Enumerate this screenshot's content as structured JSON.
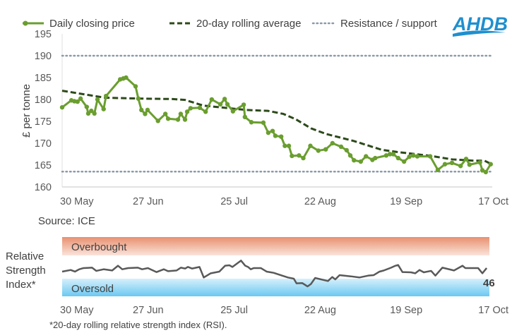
{
  "logo_text": "AHDB",
  "source": "Source: ICE",
  "footnote": "*20-day rolling relative strength index (RSI).",
  "colors": {
    "price": "#6a9e2f",
    "avg": "#2d4a1a",
    "level": "#8a9aa8",
    "rsi": "#595959",
    "logo": "#1f8fcf"
  },
  "chart_data": [
    {
      "type": "line",
      "ylabel": "£ per tonne",
      "xlabel": "",
      "x_unit": "days since 30 May",
      "xlim": [
        0,
        140
      ],
      "ylim": [
        160,
        195
      ],
      "yticks": [
        160,
        165,
        170,
        175,
        180,
        185,
        190,
        195
      ],
      "xticks": [
        {
          "day": 0,
          "label": "30 May"
        },
        {
          "day": 28,
          "label": "27 Jun"
        },
        {
          "day": 56,
          "label": "25 Jul"
        },
        {
          "day": 84,
          "label": "22 Aug"
        },
        {
          "day": 112,
          "label": "19 Sep"
        },
        {
          "day": 140,
          "label": "17 Oct"
        }
      ],
      "legend": [
        "Daily closing price",
        "20-day rolling average",
        "Resistance / support"
      ],
      "legend_position": "top",
      "resistance_support": [
        190,
        163.5
      ],
      "series": [
        {
          "name": "Daily closing price",
          "points": [
            [
              0,
              178.2
            ],
            [
              3,
              179.8
            ],
            [
              4,
              179.6
            ],
            [
              5,
              179.5
            ],
            [
              6,
              180.2
            ],
            [
              8,
              178.3
            ],
            [
              8.5,
              176.8
            ],
            [
              9.5,
              177.4
            ],
            [
              10.5,
              176.8
            ],
            [
              11.5,
              180
            ],
            [
              13.5,
              177.8
            ],
            [
              14.3,
              180.8
            ],
            [
              18.9,
              184.6
            ],
            [
              19.9,
              184.8
            ],
            [
              20.8,
              185
            ],
            [
              23.9,
              183
            ],
            [
              24.8,
              180.2
            ],
            [
              25.8,
              177.6
            ],
            [
              27,
              176.7
            ],
            [
              27.8,
              177.6
            ],
            [
              31.2,
              175.1
            ],
            [
              33.6,
              176.7
            ],
            [
              34.5,
              175.6
            ],
            [
              37.7,
              175.4
            ],
            [
              38.6,
              176.7
            ],
            [
              40,
              175.4
            ],
            [
              40.7,
              177.2
            ],
            [
              41.8,
              178
            ],
            [
              44.8,
              178.1
            ],
            [
              46.7,
              177.2
            ],
            [
              48.7,
              180
            ],
            [
              51.5,
              178.9
            ],
            [
              52.9,
              180.1
            ],
            [
              53.8,
              178.9
            ],
            [
              55.6,
              177.3
            ],
            [
              59.1,
              178.8
            ],
            [
              59.5,
              176
            ],
            [
              61.6,
              174.8
            ],
            [
              65.5,
              174.7
            ],
            [
              67.1,
              172.4
            ],
            [
              68.5,
              172.8
            ],
            [
              69.4,
              171.7
            ],
            [
              71.3,
              171.5
            ],
            [
              72.5,
              169.4
            ],
            [
              73.8,
              169.4
            ],
            [
              74.8,
              167.1
            ],
            [
              77.1,
              167.2
            ],
            [
              78.5,
              166.6
            ],
            [
              80.8,
              169.4
            ],
            [
              83.4,
              168.3
            ],
            [
              85.8,
              168.6
            ],
            [
              88,
              170
            ],
            [
              90.8,
              169.2
            ],
            [
              92.6,
              168.4
            ],
            [
              93.8,
              167.2
            ],
            [
              95,
              166.1
            ],
            [
              97.2,
              165.8
            ],
            [
              98.9,
              167
            ],
            [
              101,
              166.2
            ],
            [
              101.9,
              166.6
            ],
            [
              105.5,
              167.2
            ],
            [
              106.7,
              167.5
            ],
            [
              107.8,
              167.5
            ],
            [
              109.4,
              166.6
            ],
            [
              111.3,
              165.8
            ],
            [
              113,
              166.9
            ],
            [
              114.3,
              167.2
            ],
            [
              115.6,
              167
            ],
            [
              119.8,
              167
            ],
            [
              122.3,
              163.9
            ],
            [
              124.6,
              165.2
            ],
            [
              126.9,
              165.5
            ],
            [
              129.7,
              164.8
            ],
            [
              131.5,
              166.4
            ],
            [
              132.6,
              165.1
            ],
            [
              136,
              165.6
            ],
            [
              136.8,
              163.8
            ],
            [
              137.9,
              163.4
            ],
            [
              139.5,
              165.2
            ]
          ]
        },
        {
          "name": "20-day rolling average",
          "points": [
            [
              0,
              182
            ],
            [
              14,
              180.4
            ],
            [
              26,
              180.2
            ],
            [
              36,
              180.1
            ],
            [
              40,
              179.9
            ],
            [
              46,
              178.6
            ],
            [
              60,
              177.6
            ],
            [
              67,
              177.4
            ],
            [
              72,
              176.7
            ],
            [
              76,
              175.5
            ],
            [
              81,
              173.4
            ],
            [
              86,
              172.1
            ],
            [
              95,
              170.5
            ],
            [
              104,
              168.5
            ],
            [
              109,
              168
            ],
            [
              120,
              167.1
            ],
            [
              127,
              166.3
            ],
            [
              134,
              166
            ],
            [
              137.5,
              166
            ],
            [
              139.5,
              165.3
            ]
          ]
        }
      ]
    },
    {
      "type": "line",
      "ylabel": "Relative Strength Index*",
      "ylim": [
        0,
        100
      ],
      "overbought_label": "Overbought",
      "oversold_label": "Oversold",
      "bands": {
        "overbought": [
          70,
          100
        ],
        "oversold": [
          0,
          30
        ]
      },
      "last_value_label": "46",
      "xticks": [
        {
          "day": 0,
          "label": "30 May"
        },
        {
          "day": 28,
          "label": "27 Jun"
        },
        {
          "day": 56,
          "label": "25 Jul"
        },
        {
          "day": 84,
          "label": "22 Aug"
        },
        {
          "day": 112,
          "label": "19 Sep"
        },
        {
          "day": 140,
          "label": "17 Oct"
        }
      ],
      "series": [
        {
          "name": "RSI",
          "points": [
            [
              0,
              41.2
            ],
            [
              2.8,
              43.9
            ],
            [
              4.2,
              41.2
            ],
            [
              5.6,
              45.1
            ],
            [
              7,
              47.1
            ],
            [
              9.8,
              47.8
            ],
            [
              11.2,
              42.4
            ],
            [
              13.6,
              45.1
            ],
            [
              16.4,
              43.1
            ],
            [
              18.3,
              51
            ],
            [
              19.7,
              45.1
            ],
            [
              21.6,
              47.1
            ],
            [
              24.8,
              47.8
            ],
            [
              26.2,
              45.1
            ],
            [
              28.1,
              47.1
            ],
            [
              30.9,
              40.4
            ],
            [
              33.3,
              45.1
            ],
            [
              34.7,
              41.9
            ],
            [
              37.5,
              43.1
            ],
            [
              38.9,
              47.8
            ],
            [
              40.3,
              46.3
            ],
            [
              41.2,
              49
            ],
            [
              42.6,
              46.3
            ],
            [
              45,
              49
            ],
            [
              46.4,
              31.4
            ],
            [
              48.7,
              38.4
            ],
            [
              51.5,
              41.2
            ],
            [
              53.4,
              51
            ],
            [
              54.8,
              51.8
            ],
            [
              55.8,
              49
            ],
            [
              58.6,
              59.6
            ],
            [
              60,
              51
            ],
            [
              60.9,
              49
            ],
            [
              61.8,
              45.1
            ],
            [
              62.8,
              47.1
            ],
            [
              65.1,
              47.1
            ],
            [
              67,
              41.2
            ],
            [
              69.3,
              39.2
            ],
            [
              72.1,
              34.5
            ],
            [
              74,
              31.4
            ],
            [
              75.9,
              29.4
            ],
            [
              76.8,
              21.6
            ],
            [
              78.7,
              22
            ],
            [
              80.4,
              16.5
            ],
            [
              81.5,
              20.4
            ],
            [
              82.9,
              30.6
            ],
            [
              87.1,
              25.5
            ],
            [
              88.5,
              32.2
            ],
            [
              89.5,
              28.2
            ],
            [
              90.9,
              35.3
            ],
            [
              94.6,
              33.3
            ],
            [
              97.4,
              31.4
            ],
            [
              100.3,
              34.5
            ],
            [
              102.1,
              35.3
            ],
            [
              104,
              41.2
            ],
            [
              105.4,
              43.1
            ],
            [
              107.8,
              47.8
            ],
            [
              109.2,
              51
            ],
            [
              110.1,
              52.2
            ],
            [
              111.5,
              40.4
            ],
            [
              114.3,
              40
            ],
            [
              115.7,
              38.4
            ],
            [
              117.1,
              43.9
            ],
            [
              118.5,
              40
            ],
            [
              120.9,
              42.4
            ],
            [
              122.3,
              34.5
            ],
            [
              124.6,
              47.8
            ],
            [
              128.4,
              43.1
            ],
            [
              131.2,
              51
            ],
            [
              132.1,
              47.1
            ],
            [
              136.3,
              47.1
            ],
            [
              137.7,
              38.4
            ],
            [
              139.1,
              47.1
            ]
          ]
        }
      ]
    }
  ]
}
